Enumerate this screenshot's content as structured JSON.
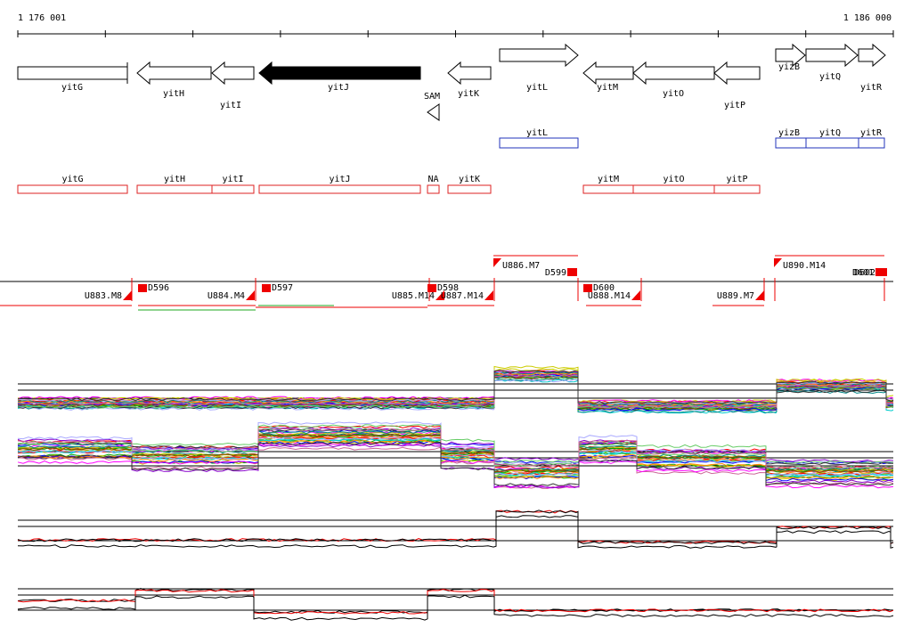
{
  "ruler": {
    "start": "1 176 001",
    "end": "1 186 000"
  },
  "genes": [
    "yitG",
    "yitH",
    "yitI",
    "yitJ",
    "SAM",
    "yitK",
    "yitL",
    "yitM",
    "yitO",
    "yitP",
    "yizB",
    "yitQ",
    "yitR"
  ],
  "operons": [
    "yitL",
    "yizB",
    "yitQ",
    "yitR"
  ],
  "annotations": [
    "yitG",
    "yitH",
    "yitI",
    "yitJ",
    "NA",
    "yitK",
    "yitM",
    "yitO",
    "yitP"
  ],
  "transcripts": [
    "U883.M8",
    "D596",
    "U884.M4",
    "D597",
    "U885.M14",
    "D598",
    "U887.M14",
    "U886.M7",
    "D599",
    "D600",
    "U888.M14",
    "U889.M7",
    "U890.M14",
    "D601",
    "D602"
  ]
}
